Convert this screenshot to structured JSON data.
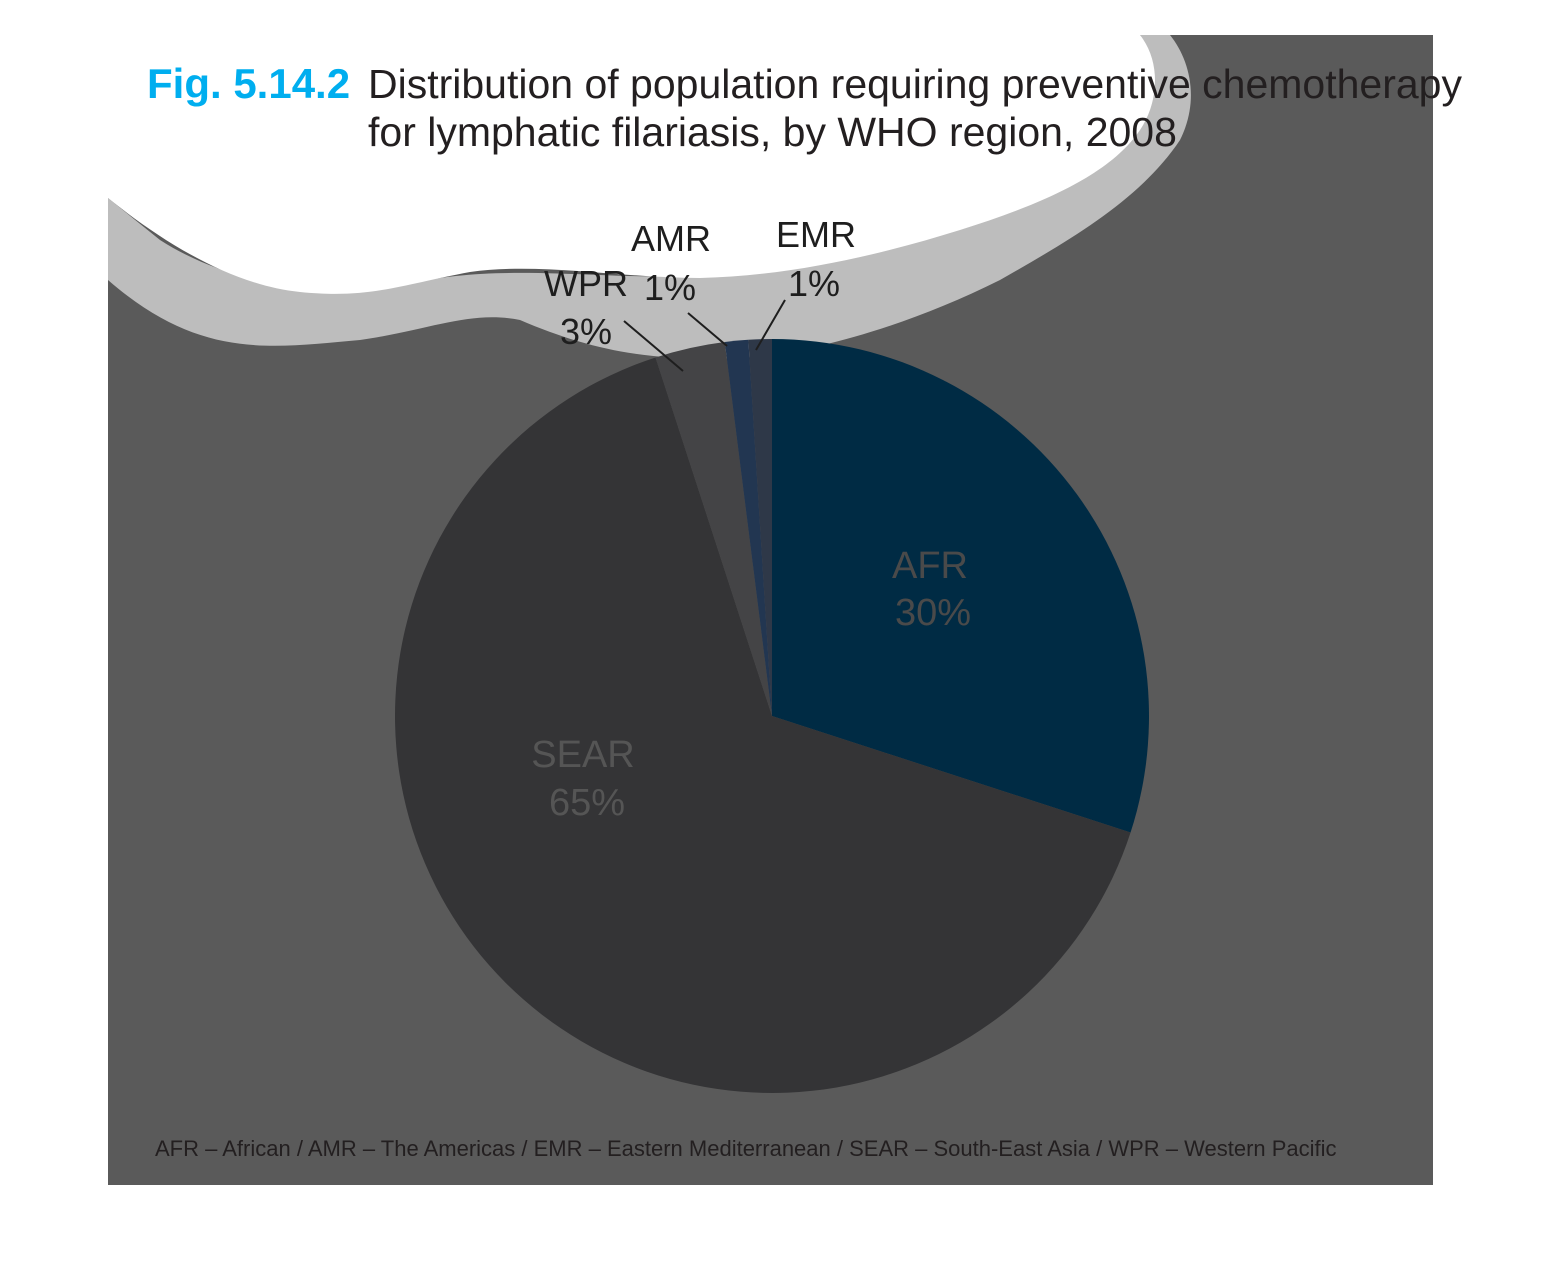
{
  "figure": {
    "number": "Fig. 5.14.2",
    "title_line1": "Distribution of population requiring preventive chemotherapy",
    "title_line2": "for lymphatic filariasis, by WHO region, 2008",
    "footnote": "AFR – African / AMR – The Americas / EMR – Eastern Mediterranean / SEAR – South-East Asia / WPR – Western Pacific"
  },
  "colors": {
    "accent": "#00AEEF",
    "panel": "#5A5A5A",
    "wave": "#BDBDBD",
    "title_text": "#231F20",
    "footnote_text": "#231F20"
  },
  "chart_data": {
    "type": "pie",
    "categories": [
      "AFR",
      "SEAR",
      "WPR",
      "AMR",
      "EMR"
    ],
    "values": [
      30,
      65,
      3,
      1,
      1
    ],
    "value_labels": [
      "30%",
      "65%",
      "3%",
      "1%",
      "1%"
    ],
    "colors": [
      "#002B44",
      "#343436",
      "#444446",
      "#223651",
      "#2E3848"
    ],
    "start": "12 o'clock, clockwise",
    "legend": "none"
  }
}
